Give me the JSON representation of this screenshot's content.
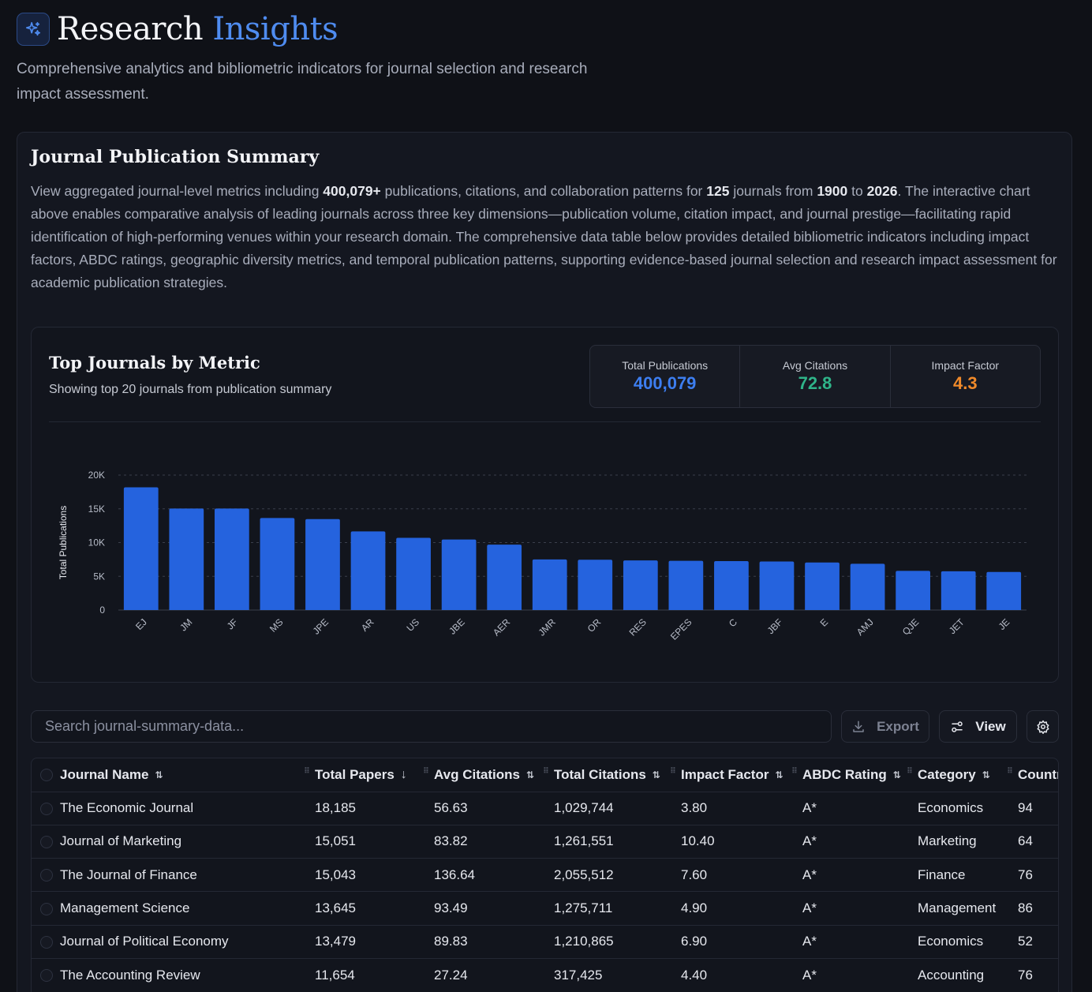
{
  "header": {
    "title_main": "Research",
    "title_accent": "Insights",
    "subtitle": "Comprehensive analytics and bibliometric indicators for journal selection and research impact assessment."
  },
  "summary": {
    "title": "Journal Publication Summary",
    "text_parts": [
      "View aggregated journal-level metrics including ",
      "400,079+",
      " publications, citations, and collaboration patterns for ",
      "125",
      " journals from ",
      "1900",
      " to ",
      "2026",
      ". The interactive chart above enables comparative analysis of leading journals across three key dimensions—publication volume, citation impact, and journal prestige—facilitating rapid identification of high-performing venues within your research domain. The comprehensive data table below provides detailed bibliometric indicators including impact factors, ABDC ratings, geographic diversity metrics, and temporal publication patterns, supporting evidence-based journal selection and research impact assessment for academic publication strategies."
    ]
  },
  "chart_card": {
    "title": "Top Journals by Metric",
    "subtitle": "Showing top 20 journals from publication summary",
    "stats": [
      {
        "label": "Total Publications",
        "value": "400,079",
        "color": "#3d7ef0"
      },
      {
        "label": "Avg Citations",
        "value": "72.8",
        "color": "#2fb489"
      },
      {
        "label": "Impact Factor",
        "value": "4.3",
        "color": "#f08a2a"
      }
    ]
  },
  "chart_data": {
    "type": "bar",
    "ylabel": "Total Publications",
    "ylim": [
      0,
      20000
    ],
    "yticks": [
      0,
      5000,
      10000,
      15000,
      20000
    ],
    "ytick_labels": [
      "0",
      "5K",
      "10K",
      "15K",
      "20K"
    ],
    "grid": true,
    "bar_color": "#2563de",
    "categories": [
      "EJ",
      "JM",
      "JF",
      "MS",
      "JPE",
      "AR",
      "US",
      "JBE",
      "AER",
      "JMR",
      "OR",
      "RES",
      "EPES",
      "C",
      "JBF",
      "E",
      "AMJ",
      "QJE",
      "JET",
      "JE"
    ],
    "values": [
      18185,
      15051,
      15043,
      13645,
      13479,
      11654,
      10700,
      10450,
      9700,
      7500,
      7450,
      7350,
      7300,
      7250,
      7200,
      7050,
      6850,
      5800,
      5750,
      5650
    ]
  },
  "toolbar": {
    "search_placeholder": "Search journal-summary-data...",
    "export_label": "Export",
    "view_label": "View"
  },
  "table": {
    "columns": [
      "Journal Name",
      "Total Papers",
      "Avg Citations",
      "Total Citations",
      "Impact Factor",
      "ABDC Rating",
      "Category",
      "Countries"
    ],
    "rows": [
      [
        "The Economic Journal",
        "18,185",
        "56.63",
        "1,029,744",
        "3.80",
        "A*",
        "Economics",
        "94"
      ],
      [
        "Journal of Marketing",
        "15,051",
        "83.82",
        "1,261,551",
        "10.40",
        "A*",
        "Marketing",
        "64"
      ],
      [
        "The Journal of Finance",
        "15,043",
        "136.64",
        "2,055,512",
        "7.60",
        "A*",
        "Finance",
        "76"
      ],
      [
        "Management Science",
        "13,645",
        "93.49",
        "1,275,711",
        "4.90",
        "A*",
        "Management",
        "86"
      ],
      [
        "Journal of Political Economy",
        "13,479",
        "89.83",
        "1,210,865",
        "6.90",
        "A*",
        "Economics",
        "52"
      ],
      [
        "The Accounting Review",
        "11,654",
        "27.24",
        "317,425",
        "4.40",
        "A*",
        "Accounting",
        "76"
      ]
    ]
  }
}
